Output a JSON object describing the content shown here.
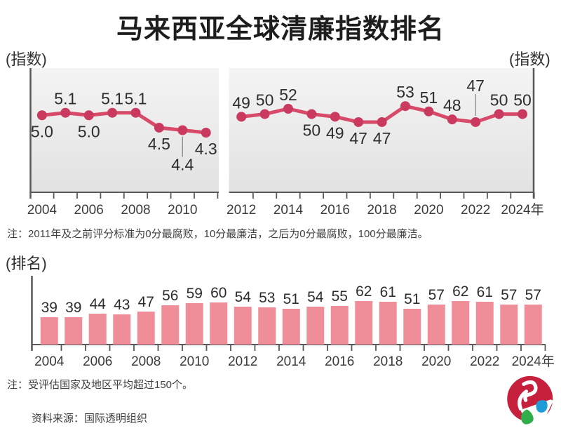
{
  "page": {
    "title": "马来西亚全球清廉指数排名",
    "unit_index_left": "(指数)",
    "unit_index_right": "(指数)",
    "unit_rank": "(排名)",
    "note_index": "注：2011年及之前评分标准为0分最腐败，10分最廉洁，之后为0分最腐败，100分最廉洁。",
    "note_rank": "注：受评估国家及地区平均超过150个。",
    "source": "资料来源：国际透明组织"
  },
  "colors": {
    "line": "#d84a6a",
    "dot": "#c93a5e",
    "bar": "#ef8d98",
    "axis": "#58585a",
    "value_label": "#2d2d2d",
    "tick_label": "#3b3b3b",
    "leader": "#909090",
    "plot_bg_top": "#f4f4f4",
    "plot_bg_bottom": "#e2e2e2",
    "logo_red": "#c6203d",
    "logo_green": "#2fae49",
    "logo_blue": "#1d9cd8"
  },
  "chart_data": [
    {
      "type": "line",
      "unit": "(指数)",
      "categories": [
        2004,
        2005,
        2006,
        2007,
        2008,
        2009,
        2010,
        2011
      ],
      "values": [
        5.0,
        5.1,
        5.0,
        5.1,
        5.1,
        4.5,
        4.4,
        4.3
      ],
      "value_labels": [
        "5.0",
        "5.1",
        "5.0",
        "5.1",
        "5.1",
        "4.5",
        "4.4",
        "4.3"
      ],
      "label_pos": [
        "below",
        "above",
        "below",
        "above",
        "above",
        "below",
        "leader-below",
        "below"
      ],
      "ylim": [
        1.9,
        6.9
      ],
      "grid": false,
      "x_tick_labels": [
        {
          "i": 0,
          "label": "2004"
        },
        {
          "i": 2,
          "label": "2006"
        },
        {
          "i": 4,
          "label": "2008"
        },
        {
          "i": 6,
          "label": "2010"
        }
      ]
    },
    {
      "type": "line",
      "unit": "(指数)",
      "categories": [
        2012,
        2013,
        2014,
        2015,
        2016,
        2017,
        2018,
        2019,
        2020,
        2021,
        2022,
        2023,
        2024
      ],
      "values": [
        49,
        50,
        52,
        50,
        49,
        47,
        47,
        53,
        51,
        48,
        47,
        50,
        50
      ],
      "value_labels": [
        "49",
        "50",
        "52",
        "50",
        "49",
        "47",
        "47",
        "53",
        "51",
        "48",
        "47",
        "50",
        "50"
      ],
      "label_pos": [
        "above",
        "above",
        "above",
        "below",
        "below",
        "below",
        "below",
        "above",
        "above",
        "above",
        "leader-above",
        "above",
        "above"
      ],
      "ylim": [
        20.6,
        67.3
      ],
      "grid": false,
      "x_tick_labels": [
        {
          "i": 0,
          "label": "2012"
        },
        {
          "i": 2,
          "label": "2014"
        },
        {
          "i": 4,
          "label": "2016"
        },
        {
          "i": 6,
          "label": "2018"
        },
        {
          "i": 8,
          "label": "2020"
        },
        {
          "i": 10,
          "label": "2022"
        },
        {
          "i": 12,
          "label": "2024年"
        }
      ]
    },
    {
      "type": "bar",
      "unit": "(排名)",
      "categories": [
        2004,
        2005,
        2006,
        2007,
        2008,
        2009,
        2010,
        2011,
        2012,
        2013,
        2014,
        2015,
        2016,
        2017,
        2018,
        2019,
        2020,
        2021,
        2022,
        2023,
        2024
      ],
      "values": [
        39,
        39,
        44,
        43,
        47,
        56,
        59,
        60,
        54,
        53,
        51,
        54,
        55,
        62,
        61,
        51,
        57,
        62,
        61,
        57,
        57
      ],
      "value_labels": [
        "39",
        "39",
        "44",
        "43",
        "47",
        "56",
        "59",
        "60",
        "54",
        "53",
        "51",
        "54",
        "55",
        "62",
        "61",
        "51",
        "57",
        "62",
        "61",
        "57",
        "57"
      ],
      "ylim": [
        0,
        98
      ],
      "grid": false,
      "x_tick_labels": [
        {
          "i": 0,
          "label": "2004"
        },
        {
          "i": 2,
          "label": "2006"
        },
        {
          "i": 4,
          "label": "2008"
        },
        {
          "i": 6,
          "label": "2010"
        },
        {
          "i": 8,
          "label": "2012"
        },
        {
          "i": 10,
          "label": "2014"
        },
        {
          "i": 12,
          "label": "2016"
        },
        {
          "i": 14,
          "label": "2018"
        },
        {
          "i": 16,
          "label": "2020"
        },
        {
          "i": 18,
          "label": "2022"
        },
        {
          "i": 20,
          "label": "2024年"
        }
      ]
    }
  ]
}
